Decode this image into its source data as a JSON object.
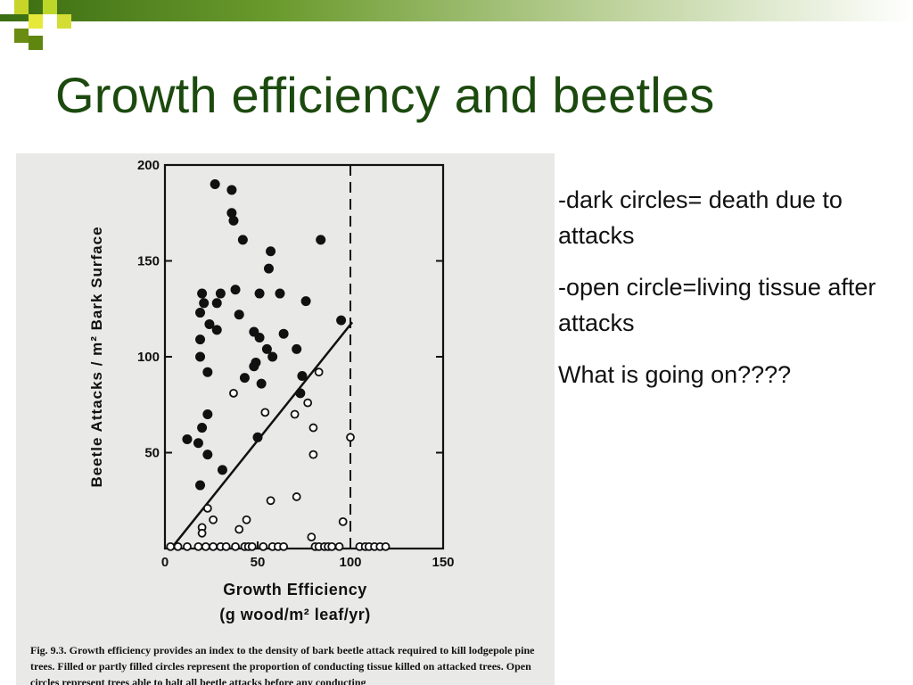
{
  "slide": {
    "title": "Growth efficiency and beetles",
    "notes": [
      "-dark circles= death due to attacks",
      "-open circle=living tissue after attacks",
      "What is going on????"
    ]
  },
  "colors": {
    "title": "#1c4a0e",
    "accent": "#3b6d12",
    "figure_background": "#e9e9e7",
    "ink": "#111111"
  },
  "chart_data": {
    "type": "scatter",
    "xlabel": "Growth Efficiency",
    "xlabel_units": "(g wood/m² leaf/yr)",
    "ylabel": "Beetle Attacks / m² Bark Surface",
    "xlim": [
      0,
      150
    ],
    "ylim": [
      0,
      200
    ],
    "x_ticks": [
      0,
      50,
      100,
      150
    ],
    "y_ticks": [
      50,
      100,
      150,
      200
    ],
    "reference_line": {
      "type": "dashed_vertical",
      "x": 100
    },
    "fit_line": {
      "from": [
        5,
        2
      ],
      "to": [
        101,
        118
      ]
    },
    "series": [
      {
        "name": "dark circles",
        "style": "filled",
        "points": [
          [
            27,
            190
          ],
          [
            36,
            187
          ],
          [
            36,
            175
          ],
          [
            37,
            171
          ],
          [
            42,
            161
          ],
          [
            57,
            155
          ],
          [
            84,
            161
          ],
          [
            56,
            146
          ],
          [
            20,
            133
          ],
          [
            30,
            133
          ],
          [
            38,
            135
          ],
          [
            51,
            133
          ],
          [
            62,
            133
          ],
          [
            21,
            128
          ],
          [
            28,
            128
          ],
          [
            76,
            129
          ],
          [
            19,
            123
          ],
          [
            40,
            122
          ],
          [
            24,
            117
          ],
          [
            28,
            114
          ],
          [
            48,
            113
          ],
          [
            64,
            112
          ],
          [
            19,
            109
          ],
          [
            51,
            110
          ],
          [
            55,
            104
          ],
          [
            58,
            100
          ],
          [
            19,
            100
          ],
          [
            71,
            104
          ],
          [
            49,
            97
          ],
          [
            23,
            92
          ],
          [
            48,
            95
          ],
          [
            43,
            89
          ],
          [
            52,
            86
          ],
          [
            74,
            90
          ],
          [
            73,
            81
          ],
          [
            23,
            70
          ],
          [
            20,
            63
          ],
          [
            12,
            57
          ],
          [
            18,
            55
          ],
          [
            50,
            58
          ],
          [
            23,
            49
          ],
          [
            31,
            41
          ],
          [
            19,
            33
          ],
          [
            95,
            119
          ]
        ]
      },
      {
        "name": "open circles",
        "style": "open",
        "points": [
          [
            83,
            92
          ],
          [
            37,
            81
          ],
          [
            77,
            76
          ],
          [
            70,
            70
          ],
          [
            54,
            71
          ],
          [
            80,
            63
          ],
          [
            100,
            58
          ],
          [
            80,
            49
          ],
          [
            71,
            27
          ],
          [
            57,
            25
          ],
          [
            23,
            21
          ],
          [
            96,
            14
          ],
          [
            26,
            15
          ],
          [
            44,
            15
          ],
          [
            20,
            11
          ],
          [
            40,
            10
          ],
          [
            79,
            6
          ],
          [
            20,
            8
          ],
          [
            3,
            1
          ],
          [
            7,
            1
          ],
          [
            12,
            1
          ],
          [
            18,
            1
          ],
          [
            22,
            1
          ],
          [
            26,
            1
          ],
          [
            30,
            1
          ],
          [
            33,
            1
          ],
          [
            38,
            1
          ],
          [
            43,
            1
          ],
          [
            45,
            1
          ],
          [
            47,
            1
          ],
          [
            53,
            1
          ],
          [
            58,
            1
          ],
          [
            61,
            1
          ],
          [
            64,
            1
          ],
          [
            81,
            1
          ],
          [
            83,
            1
          ],
          [
            86,
            1
          ],
          [
            88,
            1
          ],
          [
            90,
            1
          ],
          [
            94,
            1
          ],
          [
            105,
            1
          ],
          [
            108,
            1
          ],
          [
            110,
            1
          ],
          [
            113,
            1
          ],
          [
            116,
            1
          ],
          [
            119,
            1
          ]
        ]
      }
    ]
  },
  "caption": {
    "label": "Fig. 9.3.",
    "text": "Growth efficiency provides an index to the density of bark beetle attack required to kill lodgepole pine trees. Filled or partly filled circles represent the proportion of conducting tissue killed on attacked trees. Open circles represent trees able to halt all beetle attacks before any conducting"
  }
}
